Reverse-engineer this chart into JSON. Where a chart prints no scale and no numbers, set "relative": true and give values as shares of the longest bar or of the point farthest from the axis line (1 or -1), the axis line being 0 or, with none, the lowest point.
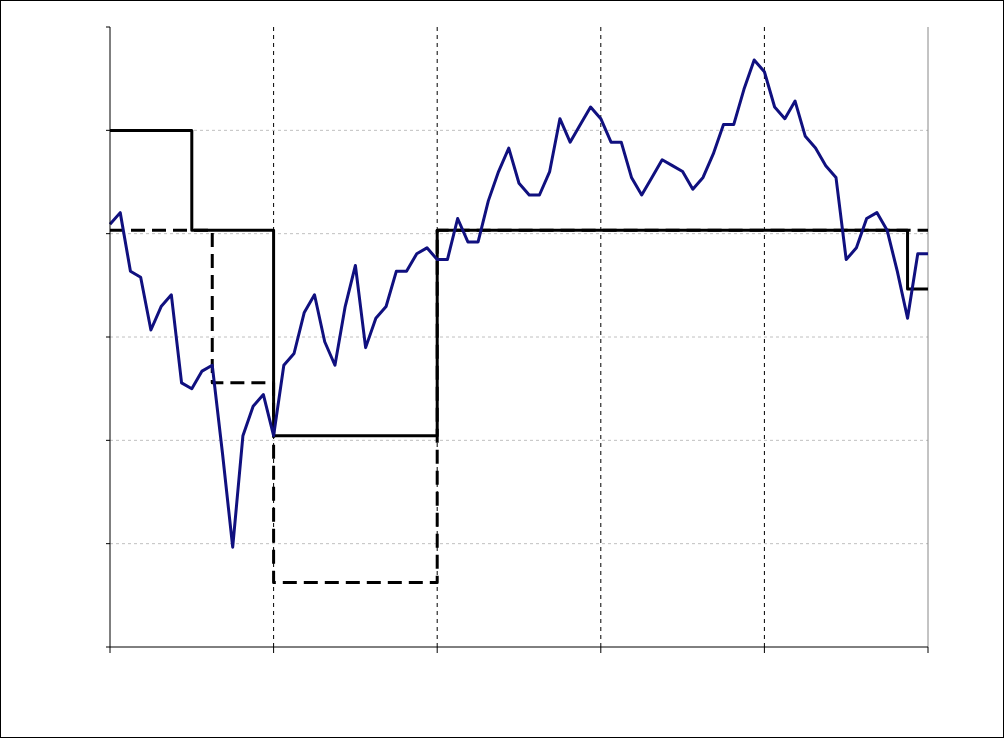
{
  "chart_data": {
    "type": "line",
    "relative": true,
    "grid": true,
    "categories": [
      null,
      null,
      null,
      null,
      null,
      null,
      null,
      null,
      null,
      null,
      null,
      null,
      null,
      null,
      null,
      null,
      null,
      null,
      null,
      null,
      null,
      null,
      null,
      null,
      null,
      null,
      null,
      null,
      null,
      null,
      null,
      null,
      null,
      null,
      null,
      null,
      null,
      null,
      null,
      null,
      null,
      null,
      null,
      null,
      null,
      null,
      null,
      null,
      null,
      null,
      null,
      null,
      null,
      null,
      null,
      null,
      null,
      null,
      null,
      null,
      null,
      null,
      null,
      null,
      null,
      null,
      null,
      null,
      null,
      null,
      null,
      null,
      null,
      null,
      null,
      null,
      null,
      null,
      null,
      null,
      null
    ],
    "series": [
      {
        "type": "step",
        "color": "#000000",
        "line_style": "dashed",
        "values": [
          0.71,
          0.71,
          0.71,
          0.71,
          0.71,
          0.71,
          0.71,
          0.71,
          0.71,
          0.71,
          0.45,
          0.45,
          0.45,
          0.45,
          0.45,
          0.45,
          0.11,
          0.11,
          0.11,
          0.11,
          0.11,
          0.11,
          0.11,
          0.11,
          0.11,
          0.11,
          0.11,
          0.11,
          0.11,
          0.11,
          0.11,
          0.11,
          0.71,
          0.71,
          0.71,
          0.71,
          0.71,
          0.71,
          0.71,
          0.71,
          0.71,
          0.71,
          0.71,
          0.71,
          0.71,
          0.71,
          0.71,
          0.71,
          0.71,
          0.71,
          0.71,
          0.71,
          0.71,
          0.71,
          0.71,
          0.71,
          0.71,
          0.71,
          0.71,
          0.71,
          0.71,
          0.71,
          0.71,
          0.71,
          0.71,
          0.71,
          0.71,
          0.71,
          0.71,
          0.71,
          0.71,
          0.71,
          0.71,
          0.71,
          0.71,
          0.71,
          0.71,
          0.71,
          0.71,
          0.71,
          0.71
        ]
      },
      {
        "type": "step",
        "color": "#000000",
        "line_style": "solid",
        "values": [
          0.88,
          0.88,
          0.88,
          0.88,
          0.88,
          0.88,
          0.88,
          0.88,
          0.71,
          0.71,
          0.71,
          0.71,
          0.71,
          0.71,
          0.71,
          0.71,
          0.36,
          0.36,
          0.36,
          0.36,
          0.36,
          0.36,
          0.36,
          0.36,
          0.36,
          0.36,
          0.36,
          0.36,
          0.36,
          0.36,
          0.36,
          0.36,
          0.71,
          0.71,
          0.71,
          0.71,
          0.71,
          0.71,
          0.71,
          0.71,
          0.71,
          0.71,
          0.71,
          0.71,
          0.71,
          0.71,
          0.71,
          0.71,
          0.71,
          0.71,
          0.71,
          0.71,
          0.71,
          0.71,
          0.71,
          0.71,
          0.71,
          0.71,
          0.71,
          0.71,
          0.71,
          0.71,
          0.71,
          0.71,
          0.71,
          0.71,
          0.71,
          0.71,
          0.71,
          0.71,
          0.71,
          0.71,
          0.71,
          0.71,
          0.71,
          0.71,
          0.71,
          0.71,
          0.61,
          0.61,
          0.61
        ]
      },
      {
        "type": "line",
        "color": "#10107f",
        "line_style": "solid",
        "values": [
          0.72,
          0.74,
          0.64,
          0.63,
          0.54,
          0.58,
          0.6,
          0.45,
          0.44,
          0.47,
          0.48,
          0.33,
          0.17,
          0.36,
          0.41,
          0.43,
          0.36,
          0.48,
          0.5,
          0.57,
          0.6,
          0.52,
          0.48,
          0.58,
          0.65,
          0.51,
          0.56,
          0.58,
          0.64,
          0.64,
          0.67,
          0.68,
          0.66,
          0.66,
          0.73,
          0.69,
          0.69,
          0.76,
          0.81,
          0.85,
          0.79,
          0.77,
          0.77,
          0.81,
          0.9,
          0.86,
          0.89,
          0.92,
          0.9,
          0.86,
          0.86,
          0.8,
          0.77,
          0.8,
          0.83,
          0.82,
          0.81,
          0.78,
          0.8,
          0.84,
          0.89,
          0.89,
          0.95,
          1.0,
          0.98,
          0.92,
          0.9,
          0.93,
          0.87,
          0.85,
          0.82,
          0.8,
          0.66,
          0.68,
          0.73,
          0.74,
          0.71,
          0.64,
          0.56,
          0.67,
          0.67
        ]
      }
    ]
  }
}
